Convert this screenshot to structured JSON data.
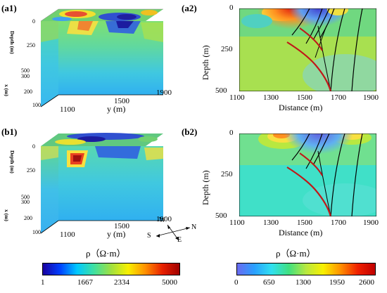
{
  "panels": {
    "a1": "(a1)",
    "a2": "(a2)",
    "b1": "(b1)",
    "b2": "(b2)"
  },
  "cube": {
    "depth_label": "Depth",
    "depth_unit": "(m)",
    "x_label": "x",
    "x_unit": "(m)",
    "y_label": "y (m)",
    "depth_ticks": [
      "0",
      "250",
      "500"
    ],
    "x_ticks": [
      "100",
      "200",
      "300"
    ],
    "y_ticks": [
      "1100",
      "1500",
      "1900"
    ]
  },
  "section": {
    "y_label": "Depth (m)",
    "x_label": "Distance (m)",
    "y_ticks": [
      "0",
      "250",
      "500"
    ],
    "x_ticks": [
      "1100",
      "1300",
      "1500",
      "1700",
      "1900"
    ]
  },
  "compass": {
    "w": "W",
    "n": "N",
    "s": "S",
    "e": "E"
  },
  "colorbars": {
    "left": {
      "title": "ρ（Ω·m）",
      "ticks": [
        "1",
        "1667",
        "2334",
        "5000"
      ],
      "colors": [
        "#1a00a0",
        "#0040ff",
        "#00c8ff",
        "#40e0a0",
        "#a0e040",
        "#f8f000",
        "#ff9000",
        "#e82000",
        "#a00000"
      ]
    },
    "right": {
      "title": "ρ（Ω·m）",
      "ticks": [
        "0",
        "650",
        "1300",
        "1950",
        "2600"
      ],
      "colors": [
        "#6a6af0",
        "#2aa0ff",
        "#30e0f0",
        "#40e080",
        "#b8e840",
        "#f8f000",
        "#ff9000",
        "#f02000",
        "#c00000"
      ]
    }
  }
}
